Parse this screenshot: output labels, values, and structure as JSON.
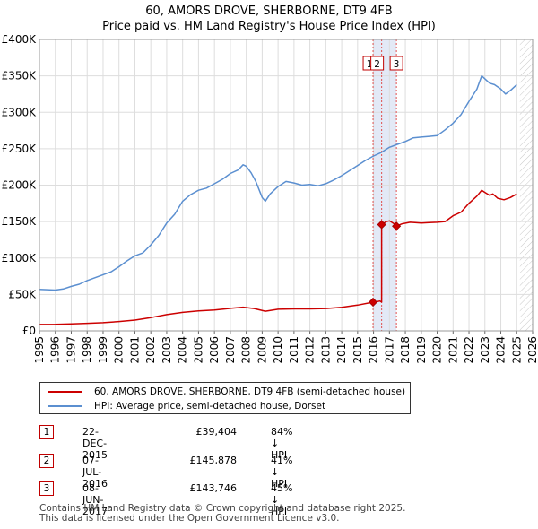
{
  "chart_data": {
    "type": "line",
    "title": "60, AMORS DROVE, SHERBORNE, DT9 4FB",
    "subtitle": "Price paid vs. HM Land Registry's House Price Index (HPI)",
    "xlim": [
      1995,
      2026
    ],
    "ylim": [
      0,
      400000
    ],
    "y_ticks": [
      0,
      50000,
      100000,
      150000,
      200000,
      250000,
      300000,
      350000,
      400000
    ],
    "y_tick_labels": [
      "£0",
      "£50K",
      "£100K",
      "£150K",
      "£200K",
      "£250K",
      "£300K",
      "£350K",
      "£400K"
    ],
    "x_ticks": [
      1995,
      1996,
      1997,
      1998,
      1999,
      2000,
      2001,
      2002,
      2003,
      2004,
      2005,
      2006,
      2007,
      2008,
      2009,
      2010,
      2011,
      2012,
      2013,
      2014,
      2015,
      2016,
      2017,
      2018,
      2019,
      2020,
      2021,
      2022,
      2023,
      2024,
      2025,
      2026
    ],
    "x_tick_labels": [
      "1995",
      "1996",
      "1997",
      "1998",
      "1999",
      "2000",
      "2001",
      "2002",
      "2003",
      "2004",
      "2005",
      "2006",
      "2007",
      "2008",
      "2009",
      "2010",
      "2011",
      "2012",
      "2013",
      "2014",
      "2015",
      "2016",
      "2017",
      "2018",
      "2019",
      "2020",
      "2021",
      "2022",
      "2023",
      "2024",
      "2025",
      "2026"
    ],
    "grid": true,
    "hatch_after": 2025.2,
    "series": [
      {
        "name": "60, AMORS DROVE, SHERBORNE, DT9 4FB (semi-detached house)",
        "color": "#cc0000",
        "points": [
          [
            1995.0,
            8800
          ],
          [
            1996.0,
            8900
          ],
          [
            1997.0,
            9600
          ],
          [
            1998.0,
            10300
          ],
          [
            1999.0,
            11200
          ],
          [
            2000.0,
            12800
          ],
          [
            2001.0,
            14800
          ],
          [
            2002.0,
            18200
          ],
          [
            2003.0,
            22300
          ],
          [
            2004.0,
            25300
          ],
          [
            2005.0,
            27300
          ],
          [
            2006.0,
            28600
          ],
          [
            2007.0,
            30900
          ],
          [
            2007.8,
            32500
          ],
          [
            2008.5,
            30600
          ],
          [
            2009.2,
            27000
          ],
          [
            2010.0,
            29600
          ],
          [
            2011.0,
            30100
          ],
          [
            2012.0,
            30200
          ],
          [
            2013.0,
            30700
          ],
          [
            2014.0,
            32400
          ],
          [
            2015.0,
            35300
          ],
          [
            2015.97,
            39404
          ],
          [
            2016.2,
            40000
          ],
          [
            2016.4,
            41000
          ],
          [
            2016.51,
            39500
          ],
          [
            2016.51,
            145878
          ],
          [
            2016.8,
            150000
          ],
          [
            2017.0,
            151000
          ],
          [
            2017.3,
            147000
          ],
          [
            2017.44,
            143746
          ],
          [
            2017.8,
            147000
          ],
          [
            2018.3,
            149000
          ],
          [
            2019.0,
            148000
          ],
          [
            2019.5,
            148500
          ],
          [
            2020.0,
            149000
          ],
          [
            2020.5,
            150000
          ],
          [
            2021.0,
            158000
          ],
          [
            2021.5,
            163000
          ],
          [
            2022.0,
            175000
          ],
          [
            2022.5,
            185000
          ],
          [
            2022.8,
            193000
          ],
          [
            2023.0,
            190000
          ],
          [
            2023.3,
            186000
          ],
          [
            2023.5,
            188000
          ],
          [
            2023.8,
            182000
          ],
          [
            2024.2,
            180000
          ],
          [
            2024.6,
            183000
          ],
          [
            2025.0,
            188000
          ]
        ]
      },
      {
        "name": "HPI: Average price, semi-detached house, Dorset",
        "color": "#5b8fd0",
        "points": [
          [
            1995.0,
            57000
          ],
          [
            1995.5,
            56500
          ],
          [
            1996.0,
            56000
          ],
          [
            1996.5,
            57500
          ],
          [
            1997.0,
            61000
          ],
          [
            1997.5,
            64000
          ],
          [
            1998.0,
            69000
          ],
          [
            1998.5,
            73000
          ],
          [
            1999.0,
            77000
          ],
          [
            1999.5,
            81000
          ],
          [
            2000.0,
            88000
          ],
          [
            2000.5,
            96000
          ],
          [
            2001.0,
            103000
          ],
          [
            2001.5,
            107000
          ],
          [
            2002.0,
            118000
          ],
          [
            2002.5,
            131000
          ],
          [
            2003.0,
            148000
          ],
          [
            2003.5,
            160000
          ],
          [
            2004.0,
            178000
          ],
          [
            2004.5,
            187000
          ],
          [
            2005.0,
            193000
          ],
          [
            2005.5,
            196000
          ],
          [
            2006.0,
            202000
          ],
          [
            2006.5,
            208000
          ],
          [
            2007.0,
            216000
          ],
          [
            2007.5,
            221000
          ],
          [
            2007.8,
            228000
          ],
          [
            2008.0,
            226000
          ],
          [
            2008.3,
            217000
          ],
          [
            2008.6,
            205000
          ],
          [
            2009.0,
            183000
          ],
          [
            2009.2,
            178000
          ],
          [
            2009.5,
            188000
          ],
          [
            2010.0,
            198000
          ],
          [
            2010.5,
            205000
          ],
          [
            2011.0,
            203000
          ],
          [
            2011.5,
            200000
          ],
          [
            2012.0,
            201000
          ],
          [
            2012.5,
            199000
          ],
          [
            2013.0,
            202000
          ],
          [
            2013.5,
            207000
          ],
          [
            2014.0,
            213000
          ],
          [
            2014.5,
            220000
          ],
          [
            2015.0,
            227000
          ],
          [
            2015.5,
            234000
          ],
          [
            2016.0,
            240000
          ],
          [
            2016.5,
            245000
          ],
          [
            2017.0,
            252000
          ],
          [
            2017.5,
            256000
          ],
          [
            2018.0,
            260000
          ],
          [
            2018.5,
            265000
          ],
          [
            2019.0,
            266000
          ],
          [
            2019.5,
            267000
          ],
          [
            2020.0,
            268000
          ],
          [
            2020.5,
            276000
          ],
          [
            2021.0,
            285000
          ],
          [
            2021.5,
            297000
          ],
          [
            2022.0,
            315000
          ],
          [
            2022.5,
            332000
          ],
          [
            2022.8,
            350000
          ],
          [
            2023.0,
            346000
          ],
          [
            2023.3,
            340000
          ],
          [
            2023.6,
            338000
          ],
          [
            2024.0,
            332000
          ],
          [
            2024.3,
            325000
          ],
          [
            2024.6,
            330000
          ],
          [
            2025.0,
            338000
          ]
        ]
      }
    ],
    "transactions": [
      {
        "label": "1",
        "x": 2015.97,
        "price": 39404
      },
      {
        "label": "2",
        "x": 2016.51,
        "price": 145878
      },
      {
        "label": "3",
        "x": 2017.44,
        "price": 143746
      }
    ],
    "shade_from": 2015.97,
    "shade_to": 2017.44
  },
  "legend": {
    "items": [
      {
        "label": "60, AMORS DROVE, SHERBORNE, DT9 4FB (semi-detached house)",
        "color": "#cc0000"
      },
      {
        "label": "HPI: Average price, semi-detached house, Dorset",
        "color": "#5b8fd0"
      }
    ]
  },
  "table": {
    "rows": [
      {
        "num": "1",
        "date": "22-DEC-2015",
        "price": "£39,404",
        "pct": "84% ↓ HPI"
      },
      {
        "num": "2",
        "date": "07-JUL-2016",
        "price": "£145,878",
        "pct": "41% ↓ HPI"
      },
      {
        "num": "3",
        "date": "08-JUN-2017",
        "price": "£143,746",
        "pct": "45% ↓ HPI"
      }
    ]
  },
  "footer": {
    "line1": "Contains HM Land Registry data © Crown copyright and database right 2025.",
    "line2": "This data is licensed under the Open Government Licence v3.0."
  }
}
